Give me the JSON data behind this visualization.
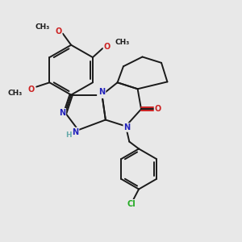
{
  "bg_color": "#e8e8e8",
  "bond_color": "#1a1a1a",
  "N_color": "#2222bb",
  "O_color": "#cc2222",
  "Cl_color": "#22aa22",
  "NH_color": "#66aaaa",
  "font_size": 7.0,
  "bond_width": 1.4,
  "figsize": [
    3.0,
    3.0
  ],
  "dpi": 100,
  "xlim": [
    0,
    10
  ],
  "ylim": [
    0,
    10
  ]
}
